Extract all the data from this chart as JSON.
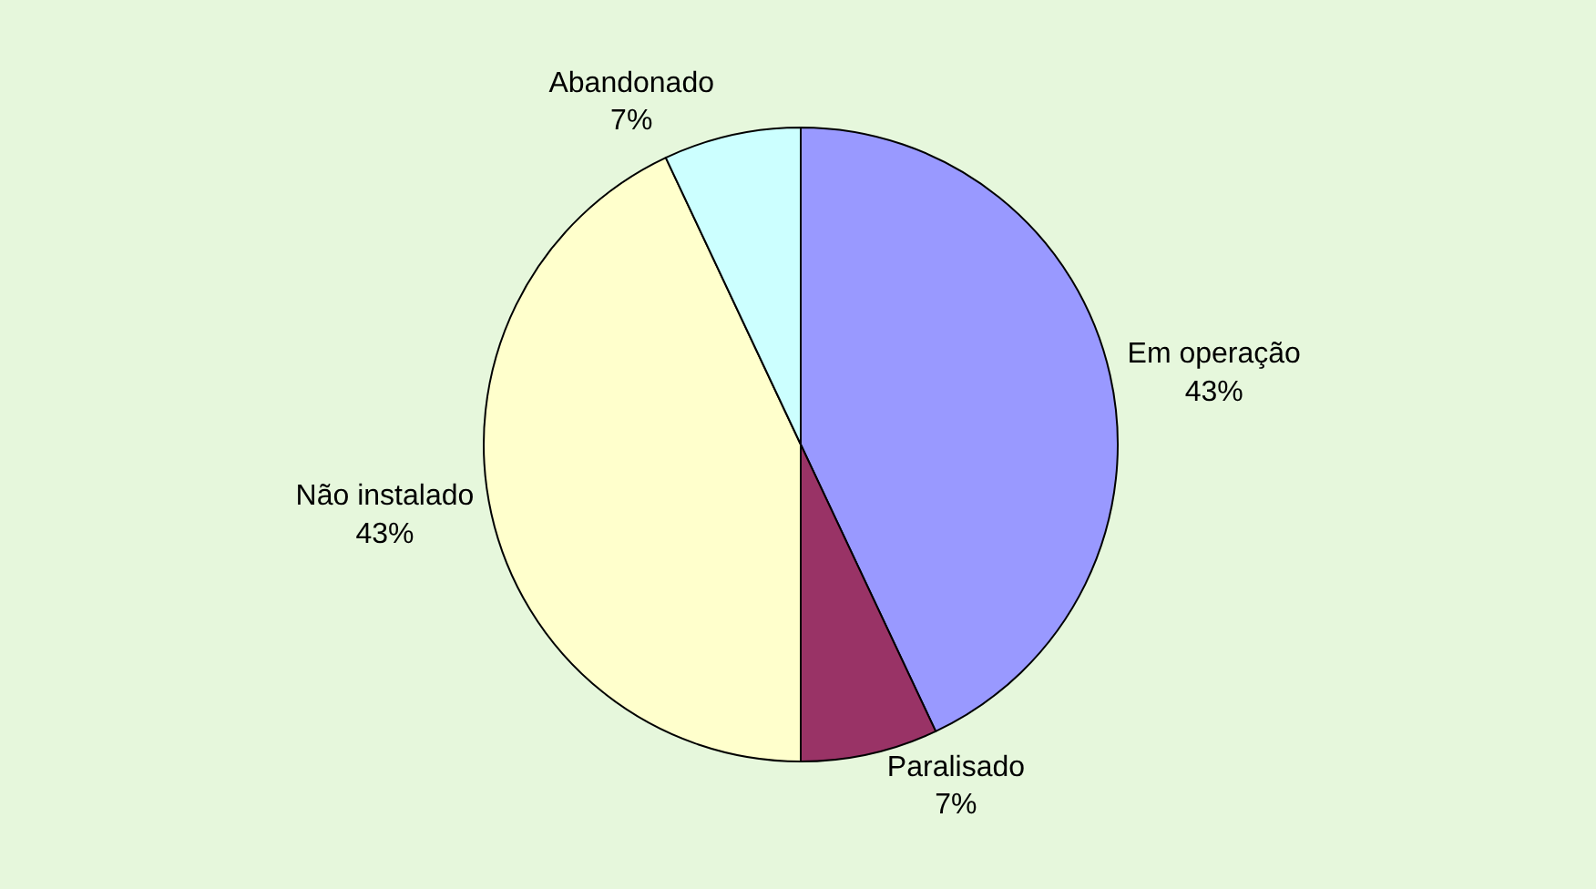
{
  "chart_data": {
    "type": "pie",
    "categories": [
      "Em operação",
      "Paralisado",
      "Não instalado",
      "Abandonado"
    ],
    "values": [
      43,
      7,
      43,
      7
    ],
    "value_labels": [
      "43%",
      "7%",
      "43%",
      "7%"
    ],
    "colors": [
      "#9999ff",
      "#993366",
      "#ffffcc",
      "#ccffff"
    ],
    "legend": false
  }
}
